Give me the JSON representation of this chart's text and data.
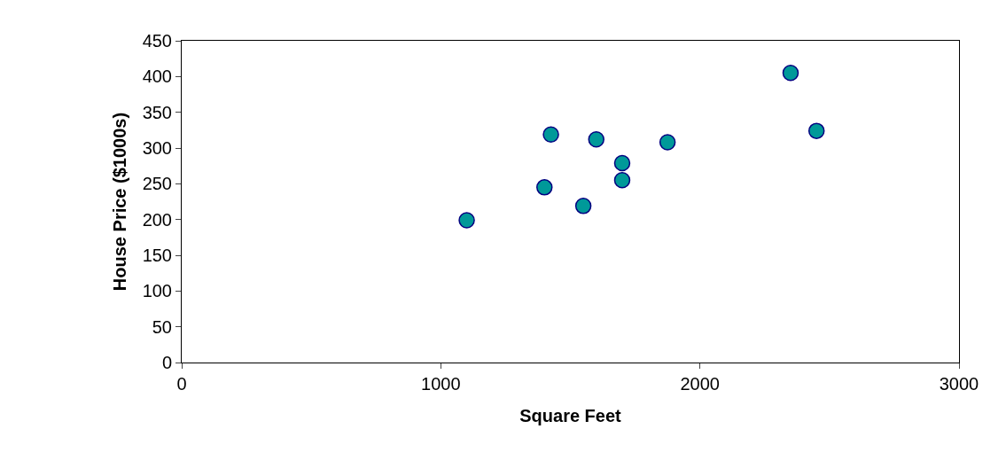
{
  "chart_data": {
    "type": "scatter",
    "xlabel": "Square Feet",
    "ylabel": "House Price ($1000s)",
    "x": [
      1400,
      1600,
      1700,
      1875,
      1100,
      1550,
      2350,
      2450,
      1425,
      1700
    ],
    "values": [
      245,
      312,
      279,
      308,
      199,
      219,
      405,
      324,
      319,
      255
    ],
    "color": "#009999",
    "marker": "circle",
    "xlim": [
      0,
      3000
    ],
    "xticks": [
      0,
      1000,
      2000,
      3000
    ],
    "ylim": [
      0,
      450
    ],
    "yticks": [
      0,
      50,
      100,
      150,
      200,
      250,
      300,
      350,
      400,
      450
    ],
    "grid": false
  }
}
